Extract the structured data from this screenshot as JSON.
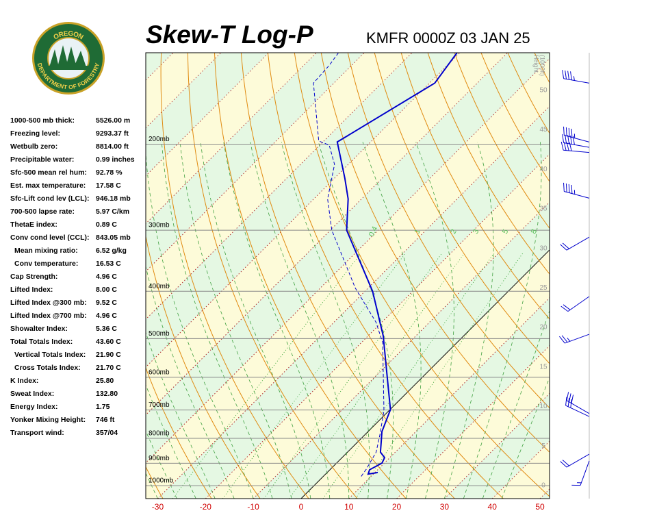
{
  "chart_data": {
    "type": "skew-t",
    "title": "Skew-T Log-P",
    "subtitle": "KMFR 0000Z 03 JAN 25",
    "xlim": [
      -32.5,
      52
    ],
    "xticks": [
      -30,
      -20,
      -10,
      0,
      10,
      20,
      30,
      40,
      50
    ],
    "ylim": [
      1063,
      130
    ],
    "log_y": true,
    "yticks": [
      {
        "value": 1000,
        "label": "1000mb"
      },
      {
        "value": 900,
        "label": "900mb"
      },
      {
        "value": 800,
        "label": "800mb"
      },
      {
        "value": 700,
        "label": "700mb"
      },
      {
        "value": 600,
        "label": "600mb"
      },
      {
        "value": 500,
        "label": "500mb"
      },
      {
        "value": 400,
        "label": "400mb"
      },
      {
        "value": 300,
        "label": "300mb"
      },
      {
        "value": 200,
        "label": "200mb"
      }
    ],
    "y2label": [
      "Height",
      "(1000ft)"
    ],
    "y2lim": [
      -1.65,
      54.75
    ],
    "y2ticks": [
      0,
      5,
      10,
      15,
      20,
      25,
      30,
      35,
      40,
      45,
      50
    ],
    "mixing_ratio_labels": [
      0.4,
      1,
      2,
      3,
      5,
      8
    ],
    "series": [
      {
        "color": "#0000cc",
        "dash": false,
        "pressure": [
          130,
          150,
          198,
          235,
          259,
          300,
          400,
          494,
          580,
          699,
          775,
          854,
          876,
          899,
          928,
          947,
          940
        ],
        "values": [
          -60.6,
          -58.9,
          -67.0,
          -57.8,
          -52.8,
          -46.6,
          -28.4,
          -16.8,
          -9.0,
          0.1,
          2.9,
          6.9,
          8.9,
          9.5,
          8.3,
          8.9,
          10.6
        ]
      },
      {
        "color": "#0000cc",
        "dash": true,
        "pressure": [
          130,
          138,
          150,
          197,
          201,
          220,
          259,
          300,
          394,
          463,
          510,
          703,
          788,
          854,
          926,
          962
        ],
        "values": [
          -85.4,
          -84.7,
          -84.3,
          -71.1,
          -68.0,
          -62.9,
          -57.1,
          -49.7,
          -32.7,
          -21.2,
          -15.5,
          -1.0,
          3.2,
          6.0,
          7.5,
          8.0
        ]
      }
    ],
    "wind": {
      "pressure": [
        150,
        198,
        203,
        208,
        258,
        310,
        410,
        490,
        712,
        722,
        862,
        890
      ],
      "direction": [
        280,
        285,
        280,
        275,
        285,
        240,
        235,
        250,
        300,
        295,
        240,
        200
      ],
      "speed": [
        45,
        45,
        50,
        40,
        45,
        20,
        20,
        25,
        30,
        30,
        20,
        15
      ],
      "color": "#0000cc"
    }
  },
  "logo": {
    "top": "OREGON",
    "bottom": "DEPARTMENT OF FORESTRY"
  },
  "indices": [
    {
      "label": "1000-500 mb thick:",
      "value": "5526.00 m"
    },
    {
      "label": "Freezing level:",
      "value": "9293.37 ft"
    },
    {
      "label": "Wetbulb zero:",
      "value": "8814.00 ft"
    },
    {
      "label": "Precipitable water:",
      "value": "0.99 inches"
    },
    {
      "label": "Sfc-500 mean rel hum:",
      "value": "92.78 %"
    },
    {
      "label": "Est. max temperature:",
      "value": "17.58 C"
    },
    {
      "label": "Sfc-Lift cond lev (LCL):",
      "value": "946.18 mb"
    },
    {
      "label": "700-500 lapse rate:",
      "value": "5.97 C/km"
    },
    {
      "label": "ThetaE index:",
      "value": "0.89 C"
    },
    {
      "label": "Conv cond level (CCL):",
      "value": "843.05 mb"
    },
    {
      "label": "Mean mixing ratio:",
      "value": "6.52 g/kg",
      "indent": true
    },
    {
      "label": "Conv temperature:",
      "value": "16.53 C",
      "indent": true
    },
    {
      "label": "Cap Strength:",
      "value": "4.96 C"
    },
    {
      "label": "Lifted Index:",
      "value": "8.00 C"
    },
    {
      "label": "Lifted Index @300 mb:",
      "value": "9.52 C"
    },
    {
      "label": "Lifted Index @700 mb:",
      "value": "4.96 C"
    },
    {
      "label": "Showalter Index:",
      "value": "5.36 C"
    },
    {
      "label": "Total Totals Index:",
      "value": "43.60 C"
    },
    {
      "label": "Vertical Totals Index:",
      "value": "21.90 C",
      "indent": true
    },
    {
      "label": "Cross Totals Index:",
      "value": "21.70 C",
      "indent": true
    },
    {
      "label": "K Index:",
      "value": "25.80"
    },
    {
      "label": "Sweat Index:",
      "value": "132.80"
    },
    {
      "label": "Energy Index:",
      "value": "1.75"
    },
    {
      "label": "Yonker Mixing Height:",
      "value": "746 ft"
    },
    {
      "label": "Transport wind:",
      "value": "357/04"
    }
  ]
}
